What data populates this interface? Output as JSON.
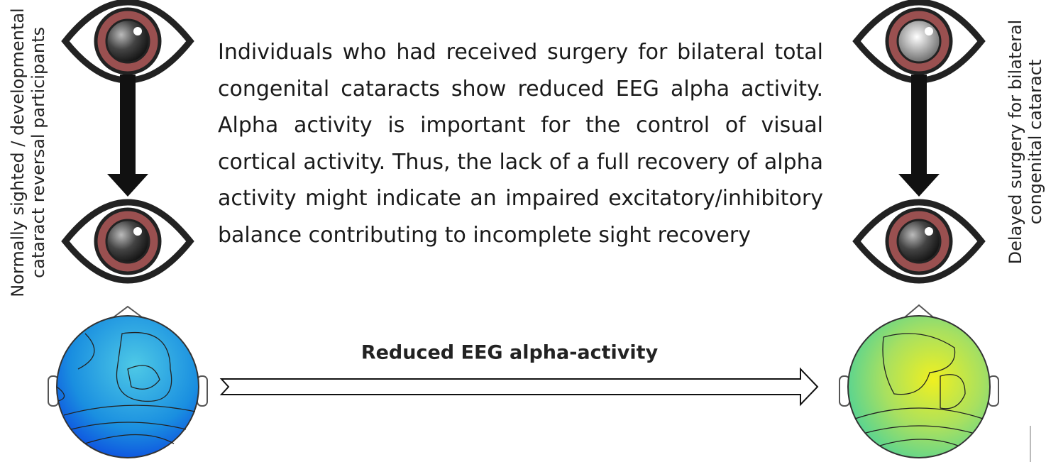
{
  "left_label": {
    "lines": [
      "Normally sighted / developmental",
      "cataract reversal participants"
    ]
  },
  "right_label": {
    "lines": [
      "Delayed surgery for bilateral",
      "congenital cataract"
    ]
  },
  "description": "Individuals who had received surgery for  bilateral total congenital cataracts show reduced EEG alpha activity. Alpha activity is important for the control of visual cortical activity. Thus, the lack of a full recovery of alpha activity might indicate an impaired excitatory/inhibitory balance contributing to incomplete sight recovery",
  "arrow_label": "Reduced EEG alpha-activity"
}
